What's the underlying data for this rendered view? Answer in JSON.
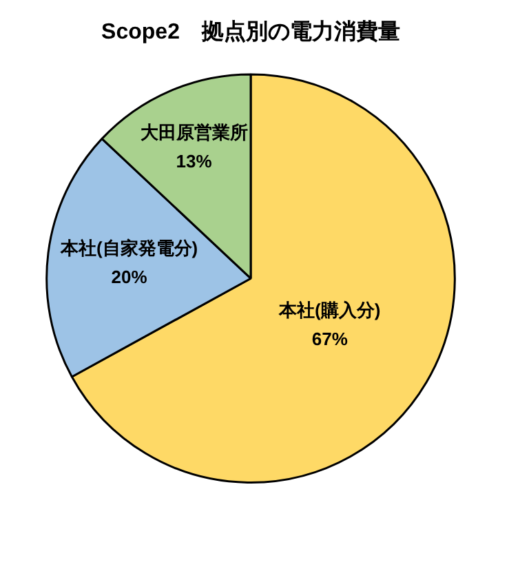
{
  "chart_data": {
    "type": "pie",
    "title": "Scope2　拠点別の電力消費量",
    "categories": [
      "本社(購入分)",
      "本社(自家発電分)",
      "大田原営業所"
    ],
    "values": [
      67,
      20,
      13
    ],
    "colors": [
      "#fed966",
      "#9dc3e6",
      "#a9d18e"
    ],
    "value_labels": [
      "67%",
      "20%",
      "13%"
    ],
    "legend": false
  }
}
